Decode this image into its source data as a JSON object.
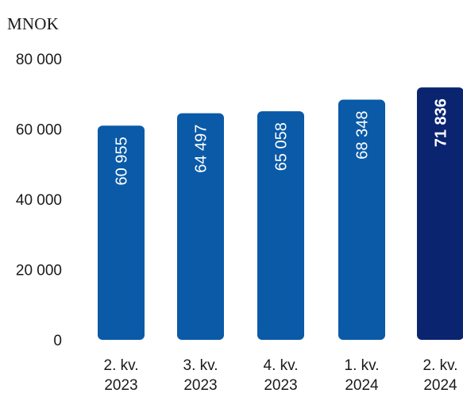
{
  "chart_data": {
    "type": "bar",
    "unit_label": "MNOK",
    "categories": [
      [
        "2. kv.",
        "2023"
      ],
      [
        "3. kv.",
        "2023"
      ],
      [
        "4. kv.",
        "2023"
      ],
      [
        "1. kv.",
        "2024"
      ],
      [
        "2. kv.",
        "2024"
      ]
    ],
    "values": [
      60955,
      64497,
      65058,
      68348,
      71836
    ],
    "value_labels": [
      "60 955",
      "64 497",
      "65 058",
      "68 348",
      "71 836"
    ],
    "highlight_index": 4,
    "ylim": [
      0,
      80000
    ],
    "yticks": [
      0,
      20000,
      40000,
      60000,
      80000
    ],
    "ytick_labels": [
      "0",
      "20 000",
      "40 000",
      "60 000",
      "80 000"
    ],
    "grid": false,
    "colors": {
      "bar": "#0a5aa8",
      "highlight": "#0a2470",
      "bar_text": "#ffffff",
      "axis_text": "#1a1a1a"
    }
  }
}
